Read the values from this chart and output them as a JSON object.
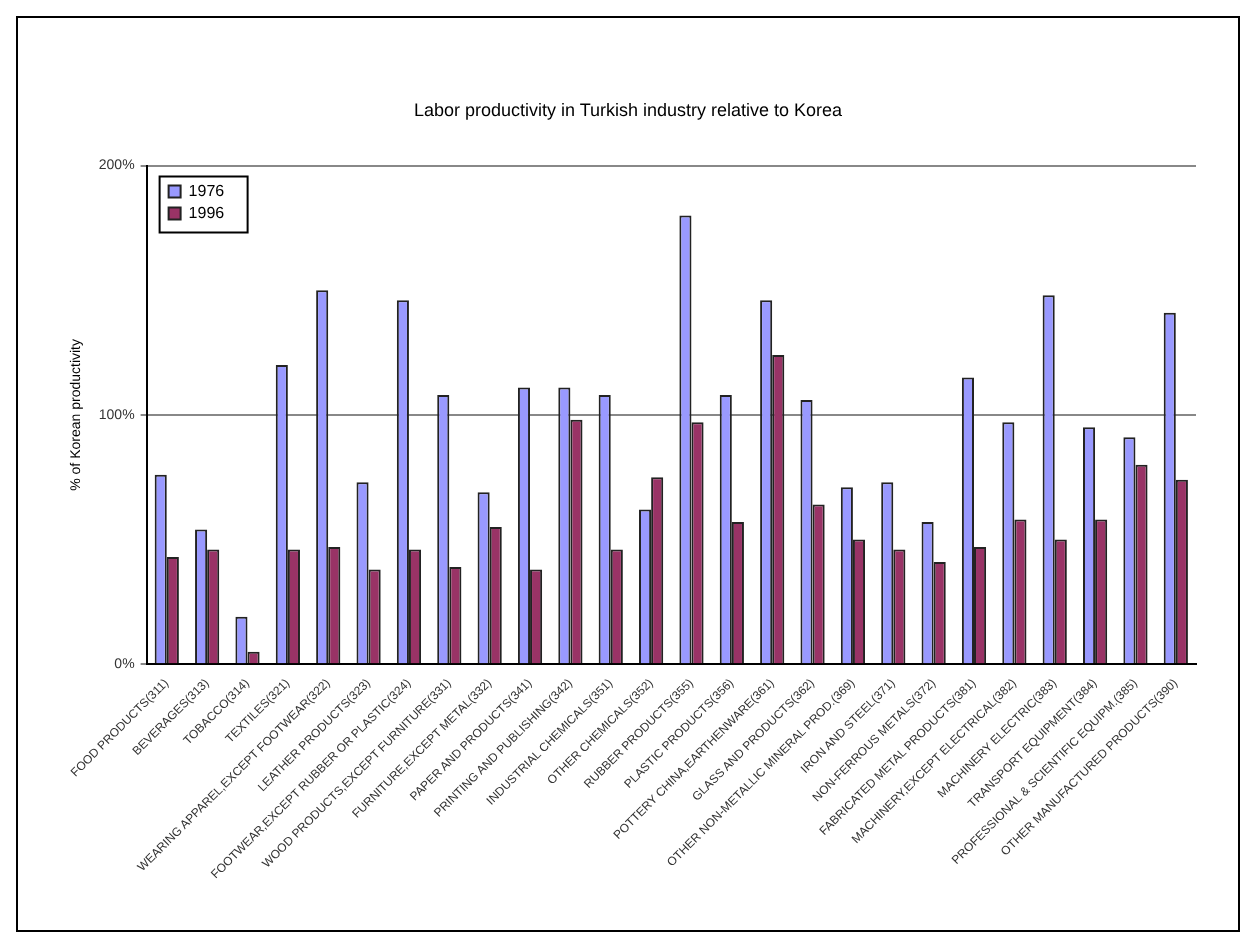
{
  "chart_data": {
    "type": "bar",
    "title": "Labor productivity in Turkish industry relative to Korea",
    "ylabel": "% of Korean productivity",
    "categories": [
      "FOOD PRODUCTS(311)",
      "BEVERAGES(313)",
      "TOBACCO(314)",
      "TEXTILES(321)",
      "WEARING APPAREL,EXCEPT FOOTWEAR(322)",
      "LEATHER PRODUCTS(323)",
      "FOOTWEAR,EXCEPT RUBBER OR PLASTIC(324)",
      "WOOD PRODUCTS,EXCEPT FURNITURE(331)",
      "FURNITURE,EXCEPT METAL(332)",
      "PAPER AND PRODUCTS(341)",
      "PRINTING AND PUBLISHING(342)",
      "INDUSTRIAL CHEMICALS(351)",
      "OTHER CHEMICALS(352)",
      "RUBBER PRODUCTS(355)",
      "PLASTIC PRODUCTS(356)",
      "POTTERY CHINA,EARTHENWARE(361)",
      "GLASS AND PRODUCTS(362)",
      "OTHER NON-METALLIC MINERAL PROD.(369)",
      "IRON AND STEEL(371)",
      "NON-FERROUS METALS(372)",
      "FABRICATED METAL PRODUCTS(381)",
      "MACHINERY,EXCEPT ELECTRICAL(382)",
      "MACHINERY ELECTRIC(383)",
      "TRANSPORT EQUIPMENT(384)",
      "PROFESSIONAL & SCIENTIFIC EQUIPM.(385)",
      "OTHER MANUFACTURED PRODUCTS(390)"
    ],
    "series": [
      {
        "name": "1976",
        "color": "#9999ff",
        "values": [
          76,
          54,
          19,
          120,
          150,
          73,
          146,
          108,
          69,
          111,
          111,
          108,
          62,
          180,
          108,
          146,
          106,
          71,
          73,
          57,
          115,
          97,
          148,
          95,
          91,
          141
        ]
      },
      {
        "name": "1996",
        "color": "#993366",
        "values": [
          43,
          46,
          5,
          46,
          47,
          38,
          46,
          39,
          55,
          38,
          98,
          46,
          75,
          97,
          57,
          124,
          64,
          50,
          46,
          41,
          47,
          58,
          50,
          58,
          80,
          74
        ]
      }
    ],
    "ylim": [
      0,
      200
    ],
    "yticks": [
      {
        "value": 0,
        "label": "0%"
      },
      {
        "value": 100,
        "label": "100%"
      },
      {
        "value": 200,
        "label": "200%"
      }
    ],
    "grid": "y",
    "legend": "top left"
  }
}
